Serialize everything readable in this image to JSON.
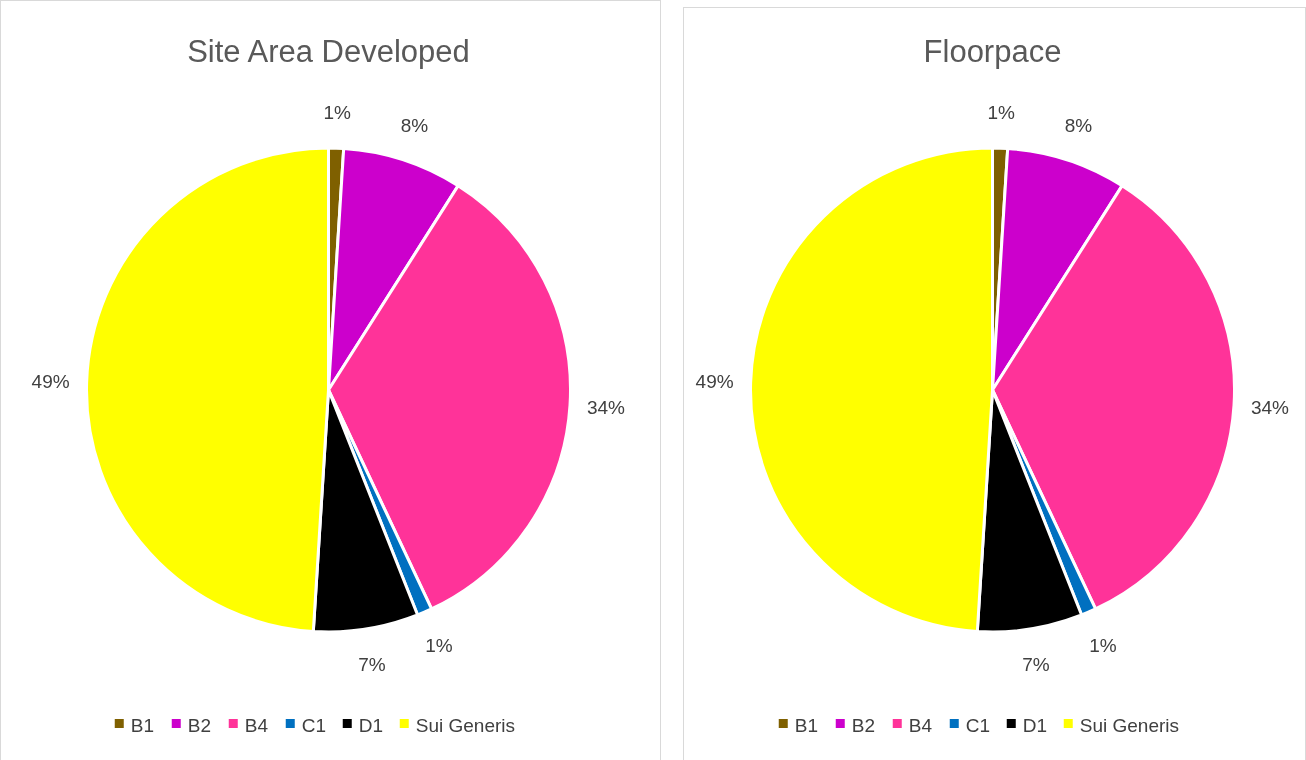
{
  "chart_data": [
    {
      "type": "pie",
      "title": "Site Area Developed",
      "categories": [
        "B1",
        "B2",
        "B4",
        "C1",
        "D1",
        "Sui Generis"
      ],
      "values": [
        1,
        8,
        34,
        1,
        7,
        49
      ],
      "colors": [
        "#7f6000",
        "#cc00cc",
        "#ff3399",
        "#0070c0",
        "#000000",
        "#ffff00"
      ],
      "value_labels": [
        "1%",
        "8%",
        "34%",
        "1%",
        "7%",
        "49%"
      ],
      "legend": "bottom"
    },
    {
      "type": "pie",
      "title": "Floorpace",
      "categories": [
        "B1",
        "B2",
        "B4",
        "C1",
        "D1",
        "Sui Generis"
      ],
      "values": [
        1,
        8,
        34,
        1,
        7,
        49
      ],
      "colors": [
        "#7f6000",
        "#cc00cc",
        "#ff3399",
        "#0070c0",
        "#000000",
        "#ffff00"
      ],
      "value_labels": [
        "1%",
        "8%",
        "34%",
        "1%",
        "7%",
        "49%"
      ],
      "legend": "bottom"
    }
  ]
}
